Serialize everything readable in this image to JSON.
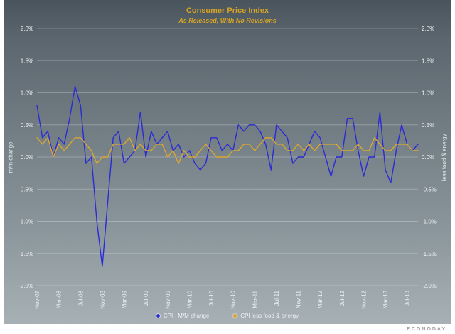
{
  "header": {
    "title": "Consumer Price Index",
    "subtitle": "As Released, With No Revisions"
  },
  "footer": {
    "brand": "ECONODAY"
  },
  "colors": {
    "title_gold": "#d8a425",
    "axis_text": "#eef2f5",
    "grid": "rgba(255,255,255,0.25)",
    "bg_top": "#49545c",
    "bg_bottom": "#a7b1b5"
  },
  "chart_data": {
    "type": "line",
    "title": "Consumer Price Index",
    "subtitle": "As Released, With No Revisions",
    "ylabel_left": "m/m change",
    "ylabel_right": "less food & energy",
    "ylim": [
      -2.0,
      2.0
    ],
    "y_ticks": [
      2.0,
      1.5,
      1.0,
      0.5,
      0.0,
      -0.5,
      -1.0,
      -1.5,
      -2.0
    ],
    "y_tick_format": "percent",
    "grid": "horizontal",
    "legend_position": "bottom",
    "x_tick_every": 4,
    "x": [
      "Nov-07",
      "Dec-07",
      "Jan-08",
      "Feb-08",
      "Mar-08",
      "Apr-08",
      "May-08",
      "Jun-08",
      "Jul-08",
      "Aug-08",
      "Sep-08",
      "Oct-08",
      "Nov-08",
      "Dec-08",
      "Jan-09",
      "Feb-09",
      "Mar-09",
      "Apr-09",
      "May-09",
      "Jun-09",
      "Jul-09",
      "Aug-09",
      "Sep-09",
      "Oct-09",
      "Nov-09",
      "Dec-09",
      "Jan-10",
      "Feb-10",
      "Mar-10",
      "Apr-10",
      "May-10",
      "Jun-10",
      "Jul-10",
      "Aug-10",
      "Sep-10",
      "Oct-10",
      "Nov-10",
      "Dec-10",
      "Jan-11",
      "Feb-11",
      "Mar-11",
      "Apr-11",
      "May-11",
      "Jun-11",
      "Jul-11",
      "Aug-11",
      "Sep-11",
      "Oct-11",
      "Nov-11",
      "Dec-11",
      "Jan-12",
      "Feb-12",
      "Mar-12",
      "Apr-12",
      "May-12",
      "Jun-12",
      "Jul-12",
      "Aug-12",
      "Sep-12",
      "Oct-12",
      "Nov-12",
      "Dec-12",
      "Jan-13",
      "Feb-13",
      "Mar-13",
      "Apr-13",
      "May-13",
      "Jun-13",
      "Jul-13",
      "Aug-13",
      "Sep-13"
    ],
    "series": [
      {
        "name": "CPI - M/M change",
        "color": "#2b2bd6",
        "values": [
          0.8,
          0.3,
          0.4,
          0.0,
          0.3,
          0.2,
          0.6,
          1.1,
          0.8,
          -0.1,
          0.0,
          -1.0,
          -1.7,
          -0.7,
          0.3,
          0.4,
          -0.1,
          0.0,
          0.1,
          0.7,
          0.0,
          0.4,
          0.2,
          0.3,
          0.4,
          0.1,
          0.2,
          0.0,
          0.1,
          -0.1,
          -0.2,
          -0.1,
          0.3,
          0.3,
          0.1,
          0.2,
          0.1,
          0.5,
          0.4,
          0.5,
          0.5,
          0.4,
          0.2,
          -0.2,
          0.5,
          0.4,
          0.3,
          -0.1,
          0.0,
          0.0,
          0.2,
          0.4,
          0.3,
          0.0,
          -0.3,
          0.0,
          0.0,
          0.6,
          0.6,
          0.1,
          -0.3,
          0.0,
          0.0,
          0.7,
          -0.2,
          -0.4,
          0.1,
          0.5,
          0.2,
          0.1,
          0.2
        ]
      },
      {
        "name": "CPI less food & energy",
        "color": "#d9a832",
        "values": [
          0.3,
          0.2,
          0.3,
          0.0,
          0.2,
          0.1,
          0.2,
          0.3,
          0.3,
          0.2,
          0.1,
          -0.1,
          0.0,
          0.0,
          0.2,
          0.2,
          0.2,
          0.3,
          0.1,
          0.2,
          0.1,
          0.1,
          0.2,
          0.2,
          0.0,
          0.1,
          -0.1,
          0.1,
          0.0,
          0.0,
          0.1,
          0.2,
          0.1,
          0.0,
          0.0,
          0.0,
          0.1,
          0.1,
          0.2,
          0.2,
          0.1,
          0.2,
          0.3,
          0.3,
          0.2,
          0.2,
          0.1,
          0.1,
          0.2,
          0.1,
          0.2,
          0.1,
          0.2,
          0.2,
          0.2,
          0.2,
          0.1,
          0.1,
          0.1,
          0.2,
          0.1,
          0.1,
          0.3,
          0.2,
          0.1,
          0.1,
          0.2,
          0.2,
          0.2,
          0.1,
          0.1
        ]
      }
    ]
  },
  "legend": {
    "items": [
      {
        "label": "CPI - M/M change"
      },
      {
        "label": "CPI less food & energy"
      }
    ]
  }
}
